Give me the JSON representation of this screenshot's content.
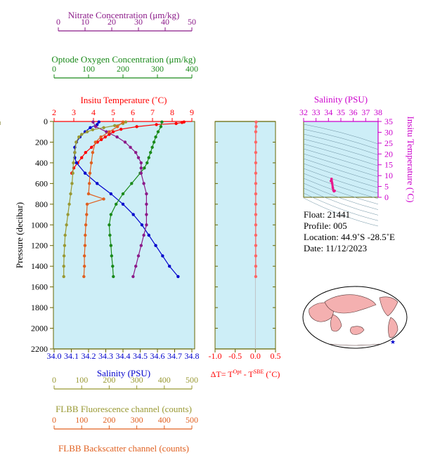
{
  "axes": {
    "nitrate": {
      "title": "Nitrate Concentration (μm/kg)",
      "ticks": [
        "0",
        "10",
        "20",
        "30",
        "40",
        "50"
      ],
      "range": [
        0,
        50
      ],
      "color": "#8b1a89"
    },
    "oxygen": {
      "title": "Optode Oxygen Concentration (μm/kg)",
      "ticks": [
        "0",
        "100",
        "200",
        "300",
        "400"
      ],
      "range": [
        0,
        400
      ],
      "color": "#1a8a1a"
    },
    "temperature": {
      "title": "Insitu Temperature (˚C)",
      "ticks": [
        "2",
        "3",
        "4",
        "5",
        "6",
        "7",
        "8",
        "9"
      ],
      "range": [
        2,
        9
      ],
      "color": "#ff0000"
    },
    "salinity": {
      "title": "Salinity (PSU)",
      "ticks": [
        "34.0",
        "34.1",
        "34.2",
        "34.3",
        "34.4",
        "34.5",
        "34.6",
        "34.7",
        "34.8"
      ],
      "range": [
        34.0,
        34.8
      ],
      "color": "#0000cc"
    },
    "pressure": {
      "title": "Pressure (decibar)",
      "ticks": [
        "0",
        "200",
        "400",
        "600",
        "800",
        "1000",
        "1200",
        "1400",
        "1600",
        "1800",
        "2000",
        "2200"
      ],
      "range": [
        0,
        2200
      ]
    },
    "fluorescence": {
      "title": "FLBB Fluorescence channel (counts)",
      "ticks": [
        "0",
        "100",
        "200",
        "300",
        "400",
        "500"
      ],
      "range": [
        0,
        500
      ],
      "color": "#999933"
    },
    "backscatter": {
      "title": "FLBB Backscatter channel (counts)",
      "ticks": [
        "0",
        "100",
        "200",
        "300",
        "400",
        "500"
      ],
      "range": [
        0,
        500
      ],
      "color": "#e06020"
    },
    "delta_t": {
      "title_prefix": "ΔT= T",
      "title_sup1": "Opt",
      "title_mid": " - T",
      "title_sup2": "SBE",
      "title_suffix": " (˚C)",
      "ticks": [
        "-1.0",
        "-0.5",
        "0.0",
        "0.5"
      ],
      "range": [
        -1.0,
        0.5
      ]
    },
    "ts_salinity": {
      "title": "Salinity (PSU)",
      "ticks": [
        "32",
        "33",
        "34",
        "35",
        "36",
        "37",
        "38"
      ],
      "range": [
        32,
        38
      ],
      "color": "#cc00cc"
    },
    "ts_temperature": {
      "title": "Insitu Temperature (˚C)",
      "ticks": [
        "0",
        "5",
        "10",
        "15",
        "20",
        "25",
        "30",
        "35"
      ],
      "range": [
        0,
        35
      ],
      "color": "#cc00cc"
    }
  },
  "info": {
    "float": "Float:  21441",
    "profile": "Profile:  005",
    "location": "Location:  44.9˚S  -28.5˚E",
    "date": "Date:  11/12/2023"
  },
  "colors": {
    "panel_bg": "#cdeef7",
    "axis": "#666600"
  },
  "chart_data": {
    "type": "line",
    "y_axis": "Pressure (decibar)",
    "y_reversed": true,
    "series": [
      {
        "name": "Insitu Temperature",
        "color": "#ff0000",
        "pressure": [
          5,
          10,
          20,
          30,
          50,
          75,
          100,
          125,
          150,
          175,
          200,
          250,
          300,
          350,
          400,
          450,
          500
        ],
        "values": [
          8.6,
          8.5,
          8.2,
          7.2,
          6.2,
          5.4,
          5.0,
          4.8,
          4.6,
          4.4,
          4.2,
          3.9,
          3.6,
          3.4,
          3.2,
          3.0,
          2.9
        ]
      },
      {
        "name": "Salinity",
        "color": "#0000cc",
        "pressure": [
          5,
          30,
          60,
          100,
          150,
          200,
          250,
          300,
          350,
          400,
          500,
          600,
          700,
          800,
          900,
          1000,
          1100,
          1200,
          1300,
          1400,
          1500
        ],
        "values": [
          34.26,
          34.25,
          34.21,
          34.18,
          34.15,
          34.13,
          34.12,
          34.12,
          34.12,
          34.13,
          34.18,
          34.25,
          34.33,
          34.4,
          34.46,
          34.51,
          34.55,
          34.59,
          34.63,
          34.67,
          34.72
        ]
      },
      {
        "name": "Optode Oxygen Concentration",
        "color": "#1a8a1a",
        "pressure": [
          5,
          50,
          100,
          150,
          200,
          250,
          300,
          350,
          400,
          450,
          500,
          600,
          700,
          800,
          900,
          1000,
          1100,
          1200,
          1300,
          1400,
          1500
        ],
        "values": [
          313,
          310,
          302,
          295,
          290,
          285,
          280,
          275,
          270,
          262,
          250,
          225,
          200,
          180,
          165,
          160,
          162,
          165,
          167,
          170,
          172
        ]
      },
      {
        "name": "Nitrate Concentration",
        "color": "#8b1a89",
        "pressure": [
          5,
          50,
          100,
          150,
          200,
          250,
          300,
          350,
          400,
          450,
          500,
          600,
          700,
          800,
          900,
          1000,
          1100,
          1200,
          1300,
          1400,
          1500
        ],
        "values": [
          13,
          14,
          18,
          22,
          25,
          27,
          29,
          30,
          31,
          31,
          31,
          32,
          33,
          33,
          33,
          33,
          32,
          31,
          30,
          29,
          28
        ]
      },
      {
        "name": "FLBB Fluorescence",
        "color": "#999933",
        "pressure": [
          5,
          20,
          40,
          60,
          80,
          100,
          125,
          150,
          200,
          300,
          400,
          500,
          600,
          700,
          800,
          900,
          1000,
          1100,
          1200,
          1300,
          1400,
          1500
        ],
        "values": [
          260,
          250,
          220,
          180,
          140,
          120,
          100,
          90,
          80,
          75,
          70,
          68,
          65,
          60,
          55,
          50,
          45,
          40,
          38,
          36,
          35,
          35
        ]
      },
      {
        "name": "FLBB Backscatter",
        "color": "#e06020",
        "pressure": [
          5,
          50,
          100,
          150,
          200,
          300,
          400,
          500,
          600,
          700,
          750,
          800,
          900,
          1000,
          1100,
          1200,
          1300,
          1400,
          1500
        ],
        "values": [
          250,
          230,
          200,
          170,
          150,
          140,
          135,
          130,
          128,
          125,
          180,
          120,
          118,
          115,
          113,
          112,
          110,
          110,
          108
        ]
      },
      {
        "name": "Delta T",
        "color": "#ff6666",
        "pressure": [
          5,
          50,
          100,
          200,
          300,
          400,
          500,
          600,
          700,
          800,
          900,
          1000,
          1100,
          1200,
          1300,
          1400,
          1500
        ],
        "values": [
          0.02,
          0.02,
          0.01,
          0.01,
          0.01,
          0.01,
          0.01,
          0.01,
          0.01,
          0.01,
          0.01,
          0.01,
          0.01,
          0.01,
          0.01,
          0.01,
          0.01
        ]
      }
    ],
    "ts_points": {
      "salinity": [
        34.2,
        34.25,
        34.3,
        34.35,
        34.4,
        34.45,
        34.5
      ],
      "temperature": [
        7.5,
        8.5,
        6.5,
        4.5,
        3.2,
        2.8,
        3.0
      ],
      "color": "#e8188c"
    }
  }
}
